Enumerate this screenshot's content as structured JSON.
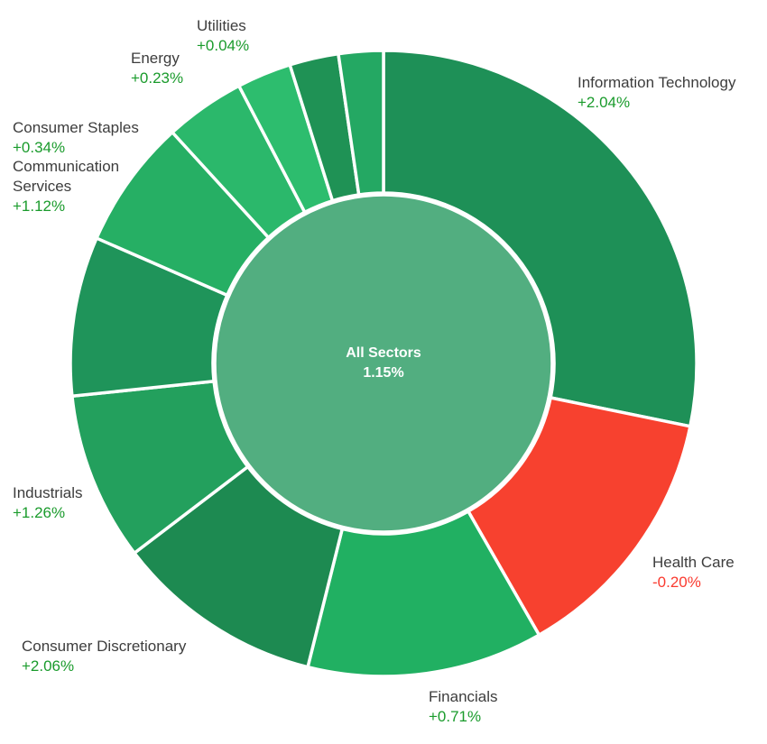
{
  "chart_data": {
    "type": "donut",
    "title": "",
    "center": {
      "label": "All Sectors",
      "value": "1.15%",
      "fill": "#52ae80",
      "text_color": "#ffffff"
    },
    "segments": [
      {
        "name": "Information Technology",
        "change": "+2.04%",
        "start_angle": 0,
        "end_angle": 101.6,
        "approx_share_pct": 28.2,
        "color": "#1e9057",
        "labeled": true
      },
      {
        "name": "Health Care",
        "change": "-0.20%",
        "start_angle": 101.6,
        "end_angle": 150.2,
        "approx_share_pct": 13.5,
        "color": "#f7412f",
        "labeled": true
      },
      {
        "name": "Financials",
        "change": "+0.71%",
        "start_angle": 150.2,
        "end_angle": 194.0,
        "approx_share_pct": 12.2,
        "color": "#21b062",
        "labeled": true
      },
      {
        "name": "Consumer Discretionary",
        "change": "+2.06%",
        "start_angle": 194.0,
        "end_angle": 232.7,
        "approx_share_pct": 10.7,
        "color": "#1d8a51",
        "labeled": true
      },
      {
        "name": "Industrials",
        "change": "+1.26%",
        "start_angle": 232.7,
        "end_angle": 264.0,
        "approx_share_pct": 8.7,
        "color": "#23a05d",
        "labeled": true
      },
      {
        "name": "Communication Services",
        "change": "+1.12%",
        "start_angle": 264.0,
        "end_angle": 293.6,
        "approx_share_pct": 8.2,
        "color": "#1f945a",
        "labeled": true
      },
      {
        "name": "Consumer Staples",
        "change": "+0.34%",
        "start_angle": 293.6,
        "end_angle": 317.6,
        "approx_share_pct": 6.7,
        "color": "#26af64",
        "labeled": true
      },
      {
        "name": "Energy",
        "change": "+0.23%",
        "start_angle": 317.6,
        "end_angle": 332.5,
        "approx_share_pct": 4.1,
        "color": "#2bb86b",
        "labeled": true
      },
      {
        "name": "Utilities",
        "change": "+0.04%",
        "start_angle": 332.5,
        "end_angle": 342.6,
        "approx_share_pct": 2.8,
        "color": "#2dbd6e",
        "labeled": true
      },
      {
        "name": "",
        "change": "",
        "start_angle": 342.6,
        "end_angle": 351.7,
        "approx_share_pct": 2.5,
        "color": "#1f9255",
        "labeled": false
      },
      {
        "name": "",
        "change": "",
        "start_angle": 351.7,
        "end_angle": 360.0,
        "approx_share_pct": 2.3,
        "color": "#24a863",
        "labeled": false
      }
    ],
    "legend_position": "none",
    "grid": false
  },
  "ui": {
    "colors": {
      "positive": "#1a9b2c",
      "negative": "#fa3a2f",
      "sector_name": "#3d3d3d",
      "segment_gap": "#ffffff",
      "background": "#ffffff"
    }
  }
}
